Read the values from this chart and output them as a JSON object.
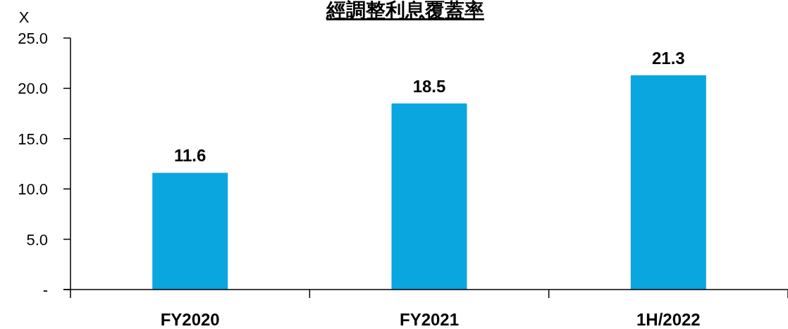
{
  "chart_data": {
    "type": "bar",
    "title": "經調整利息覆蓋率",
    "ylabel": "X",
    "categories": [
      "FY2020",
      "FY2021",
      "1H/2022"
    ],
    "values": [
      11.6,
      18.5,
      21.3
    ],
    "color": "#0aa6e0",
    "ylim": [
      0,
      25
    ],
    "yticks": [
      {
        "value": 0,
        "label": "-"
      },
      {
        "value": 5,
        "label": "5.0"
      },
      {
        "value": 10,
        "label": "10.0"
      },
      {
        "value": 15,
        "label": "15.0"
      },
      {
        "value": 20,
        "label": "20.0"
      },
      {
        "value": 25,
        "label": "25.0"
      }
    ],
    "data_labels": true
  }
}
